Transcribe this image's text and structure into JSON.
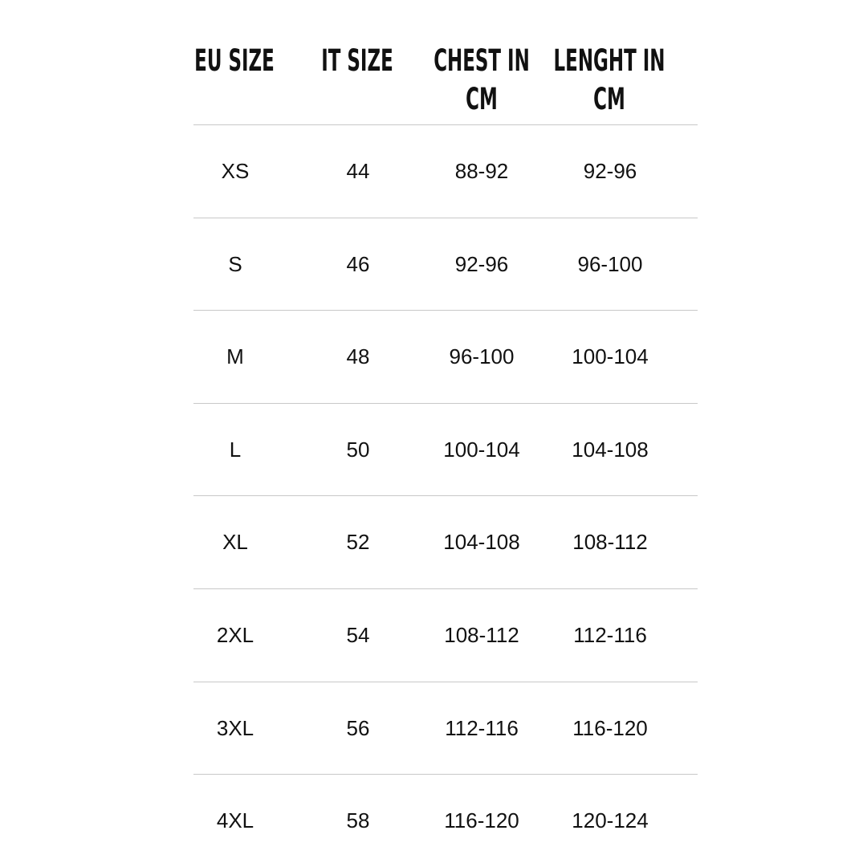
{
  "headers": [
    {
      "line1": "EU SIZE",
      "line2": ""
    },
    {
      "line1": "IT SIZE",
      "line2": ""
    },
    {
      "line1": "CHEST IN",
      "line2": "CM"
    },
    {
      "line1": "LENGHT IN",
      "line2": "CM"
    }
  ],
  "rows": [
    [
      "XS",
      "44",
      "88-92",
      "92-96"
    ],
    [
      "S",
      "46",
      "92-96",
      "96-100"
    ],
    [
      "M",
      "48",
      "96-100",
      "100-104"
    ],
    [
      "L",
      "50",
      "100-104",
      "104-108"
    ],
    [
      "XL",
      "52",
      "104-108",
      "108-112"
    ],
    [
      "2XL",
      "54",
      "108-112",
      "112-116"
    ],
    [
      "3XL",
      "56",
      "112-116",
      "116-120"
    ],
    [
      "4XL",
      "58",
      "116-120",
      "120-124"
    ]
  ]
}
